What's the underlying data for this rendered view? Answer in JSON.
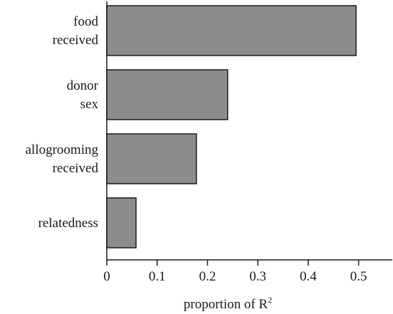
{
  "chart_data": {
    "type": "bar",
    "orientation": "horizontal",
    "categories": [
      [
        "food",
        "received"
      ],
      [
        "donor",
        "sex"
      ],
      [
        "allogrooming",
        "received"
      ],
      [
        "relatedness"
      ]
    ],
    "values": [
      0.495,
      0.24,
      0.178,
      0.058
    ],
    "xlim": [
      0,
      0.55
    ],
    "xticks": [
      "0",
      "0.1",
      "0.2",
      "0.3",
      "0.4",
      "0.5"
    ],
    "xlabel": "proportion of R",
    "xlabel_superscript": "2",
    "grid": false,
    "bar_color": "#8c8c8c",
    "bar_edge_color": "#1a1a1a"
  }
}
